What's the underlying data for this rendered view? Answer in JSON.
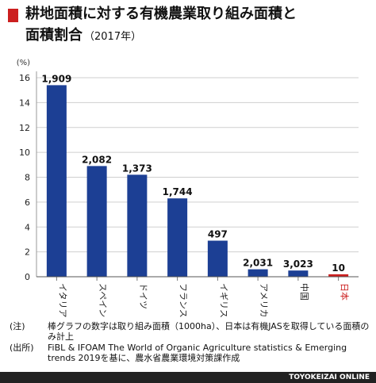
{
  "title": {
    "line1": "耕地面積に対する有機農業取り組み面積と",
    "line2": "面積割合",
    "year": "（2017年）"
  },
  "colors": {
    "accent": "#cc1f1f",
    "bar": "#1c3f94",
    "highlight": "#cc1f1f",
    "footer_bg": "#222222"
  },
  "chart_data": {
    "type": "bar",
    "unit_label": "(%)",
    "categories": [
      "イタリア",
      "スペイン",
      "ドイツ",
      "フランス",
      "イギリス",
      "アメリカ",
      "中国",
      "日本"
    ],
    "values": [
      15.4,
      8.9,
      8.2,
      6.3,
      2.9,
      0.6,
      0.5,
      0.2
    ],
    "data_labels": [
      "1,909",
      "2,082",
      "1,373",
      "1,744",
      "497",
      "2,031",
      "3,023",
      "10"
    ],
    "highlight_index": 7,
    "yticks": [
      0,
      2,
      4,
      6,
      8,
      10,
      12,
      14,
      16
    ],
    "ylim": [
      0,
      16
    ]
  },
  "notes": [
    {
      "tag": "(注)",
      "text": "棒グラフの数字は取り組み面積（1000ha）、日本は有機JASを取得している面積のみ計上"
    },
    {
      "tag": "(出所)",
      "text": "FiBL & IFOAM The World of Organic Agriculture statistics & Emerging trends 2019を基に、農水省農業環境対策課作成"
    }
  ],
  "credit": "TOYOKEIZAI ONLINE"
}
